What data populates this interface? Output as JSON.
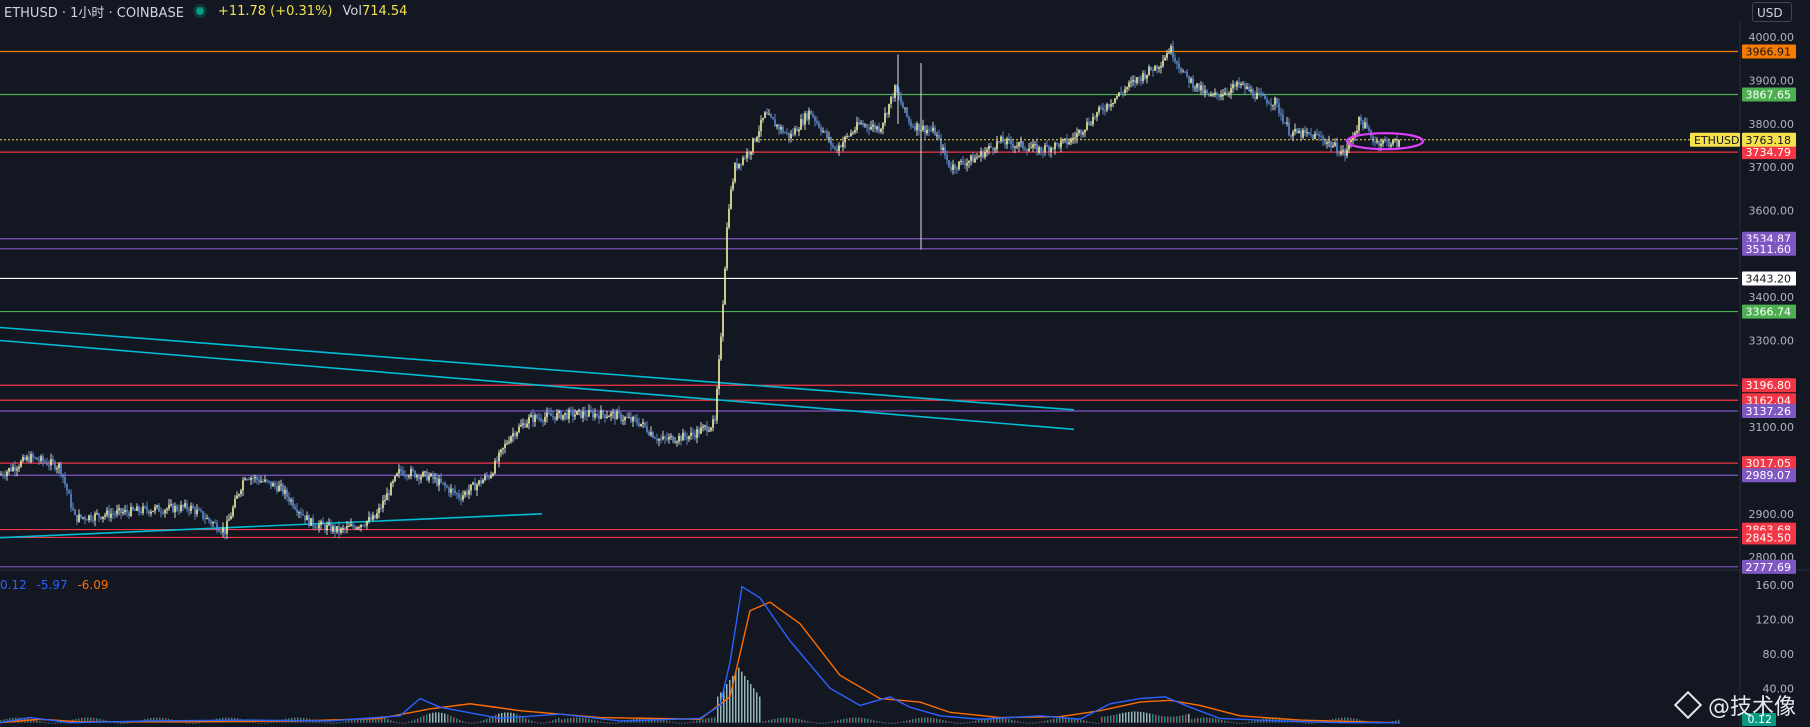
{
  "header": {
    "symbol": "ETHUSD · 1小时 · COINBASE",
    "change": "+11.78 (+0.31%)",
    "vol_label": "Vol",
    "vol_value": "714.54"
  },
  "currency": "USD",
  "macd_legend": {
    "a": "0.12",
    "b": "-5.97",
    "c": "-6.09"
  },
  "watermark": "@技术像",
  "chart_data": {
    "type": "candlestick",
    "interval": "1h",
    "price_axis": {
      "range": [
        2775,
        4035
      ],
      "ticks": [
        "4000.00",
        "3900.00",
        "3800.00",
        "3700.00",
        "3600.00",
        "3400.00",
        "3300.00",
        "3100.00",
        "2900.00",
        "2800.00"
      ]
    },
    "osc_axis": {
      "range": [
        -5,
        175
      ],
      "ticks": [
        "160.00",
        "120.00",
        "80.00",
        "40.00"
      ]
    },
    "current_price": {
      "label": "ETHUSD",
      "value": 3763.18,
      "text": "3763.18"
    },
    "levels": [
      {
        "value": 3966.91,
        "text": "3966.91",
        "color": "#f57c00"
      },
      {
        "value": 3867.65,
        "text": "3867.65",
        "color": "#4caf50"
      },
      {
        "value": 3734.79,
        "text": "3734.79",
        "color": "#f23645"
      },
      {
        "value": 3534.87,
        "text": "3534.87",
        "color": "#7e57c2"
      },
      {
        "value": 3511.6,
        "text": "3511.60",
        "color": "#7e57c2"
      },
      {
        "value": 3443.2,
        "text": "3443.20",
        "color": "#ffffff"
      },
      {
        "value": 3366.74,
        "text": "3366.74",
        "color": "#4caf50"
      },
      {
        "value": 3196.8,
        "text": "3196.80",
        "color": "#f23645"
      },
      {
        "value": 3162.04,
        "text": "3162.04",
        "color": "#f23645"
      },
      {
        "value": 3137.26,
        "text": "3137.26",
        "color": "#7e57c2"
      },
      {
        "value": 3017.05,
        "text": "3017.05",
        "color": "#f23645"
      },
      {
        "value": 2989.07,
        "text": "2989.07",
        "color": "#7e57c2"
      },
      {
        "value": 2863.68,
        "text": "2863.68",
        "color": "#f23645"
      },
      {
        "value": 2845.5,
        "text": "2845.50",
        "color": "#f23645"
      },
      {
        "value": 2777.69,
        "text": "2777.69",
        "color": "#7e57c2"
      }
    ],
    "trendlines": [
      {
        "p1": [
          0,
          3330
        ],
        "p2": [
          1074,
          3140
        ],
        "color": "#00bcd4"
      },
      {
        "p1": [
          0,
          3300
        ],
        "p2": [
          1074,
          3095
        ],
        "color": "#00bcd4"
      },
      {
        "p1": [
          0,
          2845
        ],
        "p2": [
          542,
          2900
        ],
        "color": "#00bcd4"
      }
    ],
    "ellipse": {
      "center": [
        1385,
        3760
      ],
      "color": "#e040fb"
    },
    "price_path": [
      [
        0,
        2990
      ],
      [
        30,
        3030
      ],
      [
        60,
        3010
      ],
      [
        75,
        2890
      ],
      [
        110,
        2900
      ],
      [
        150,
        2910
      ],
      [
        190,
        2915
      ],
      [
        225,
        2860
      ],
      [
        245,
        2990
      ],
      [
        280,
        2960
      ],
      [
        310,
        2880
      ],
      [
        340,
        2860
      ],
      [
        375,
        2890
      ],
      [
        400,
        3000
      ],
      [
        430,
        2985
      ],
      [
        460,
        2940
      ],
      [
        490,
        2990
      ],
      [
        510,
        3080
      ],
      [
        530,
        3120
      ],
      [
        570,
        3130
      ],
      [
        610,
        3130
      ],
      [
        640,
        3110
      ],
      [
        660,
        3070
      ],
      [
        690,
        3080
      ],
      [
        715,
        3110
      ],
      [
        722,
        3350
      ],
      [
        728,
        3600
      ],
      [
        735,
        3700
      ],
      [
        750,
        3740
      ],
      [
        765,
        3820
      ],
      [
        790,
        3770
      ],
      [
        810,
        3830
      ],
      [
        835,
        3740
      ],
      [
        860,
        3800
      ],
      [
        880,
        3790
      ],
      [
        895,
        3880
      ],
      [
        910,
        3800
      ],
      [
        935,
        3780
      ],
      [
        950,
        3700
      ],
      [
        975,
        3720
      ],
      [
        1000,
        3760
      ],
      [
        1040,
        3740
      ],
      [
        1070,
        3760
      ],
      [
        1100,
        3830
      ],
      [
        1130,
        3890
      ],
      [
        1160,
        3940
      ],
      [
        1170,
        3975
      ],
      [
        1185,
        3910
      ],
      [
        1210,
        3860
      ],
      [
        1240,
        3890
      ],
      [
        1260,
        3860
      ],
      [
        1275,
        3850
      ],
      [
        1290,
        3780
      ],
      [
        1320,
        3770
      ],
      [
        1345,
        3730
      ],
      [
        1360,
        3810
      ],
      [
        1375,
        3760
      ],
      [
        1400,
        3755
      ]
    ],
    "osc_fast": [
      [
        0,
        0
      ],
      [
        30,
        6
      ],
      [
        70,
        0
      ],
      [
        150,
        2
      ],
      [
        250,
        3
      ],
      [
        330,
        2
      ],
      [
        400,
        8
      ],
      [
        420,
        28
      ],
      [
        440,
        18
      ],
      [
        500,
        5
      ],
      [
        560,
        10
      ],
      [
        620,
        2
      ],
      [
        700,
        5
      ],
      [
        720,
        20
      ],
      [
        730,
        70
      ],
      [
        742,
        158
      ],
      [
        760,
        145
      ],
      [
        790,
        95
      ],
      [
        830,
        40
      ],
      [
        860,
        20
      ],
      [
        890,
        30
      ],
      [
        910,
        18
      ],
      [
        940,
        8
      ],
      [
        980,
        4
      ],
      [
        1040,
        8
      ],
      [
        1080,
        4
      ],
      [
        1110,
        22
      ],
      [
        1140,
        28
      ],
      [
        1165,
        30
      ],
      [
        1190,
        18
      ],
      [
        1220,
        5
      ],
      [
        1280,
        2
      ],
      [
        1340,
        0
      ],
      [
        1400,
        0
      ]
    ],
    "osc_slow": [
      [
        0,
        0
      ],
      [
        40,
        4
      ],
      [
        80,
        1
      ],
      [
        180,
        1
      ],
      [
        300,
        2
      ],
      [
        380,
        5
      ],
      [
        430,
        16
      ],
      [
        470,
        22
      ],
      [
        520,
        14
      ],
      [
        600,
        6
      ],
      [
        700,
        4
      ],
      [
        730,
        30
      ],
      [
        750,
        130
      ],
      [
        770,
        140
      ],
      [
        800,
        115
      ],
      [
        840,
        55
      ],
      [
        880,
        28
      ],
      [
        920,
        24
      ],
      [
        950,
        12
      ],
      [
        1000,
        6
      ],
      [
        1060,
        7
      ],
      [
        1100,
        14
      ],
      [
        1140,
        24
      ],
      [
        1170,
        26
      ],
      [
        1200,
        20
      ],
      [
        1240,
        8
      ],
      [
        1300,
        3
      ],
      [
        1360,
        1
      ],
      [
        1400,
        0
      ]
    ],
    "osc_last": "0.12"
  }
}
